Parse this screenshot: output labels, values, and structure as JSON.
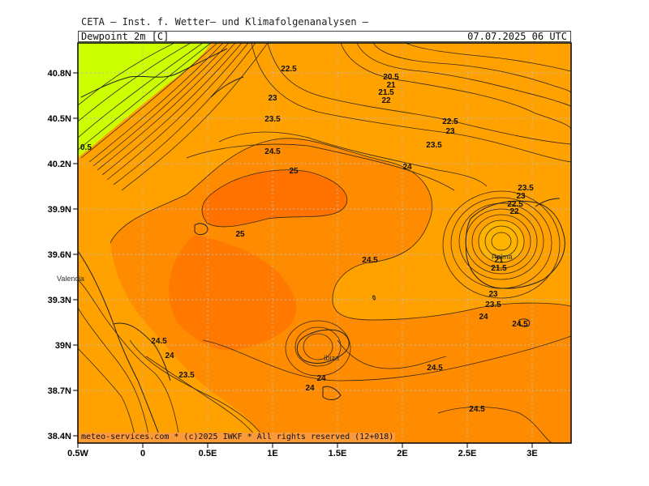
{
  "header": {
    "institute": "CETA — Inst. f. Wetter— und Klimafolgenanalysen —",
    "variable": "Dewpoint_2m [C]",
    "datetime": "07.07.2025 06 UTC"
  },
  "footer": "meteo-services.com * (c)2025 IWKF * All rights reserved (12+018)",
  "axes": {
    "lat_labels": [
      "40.8N",
      "40.5N",
      "40.2N",
      "39.9N",
      "39.6N",
      "39.3N",
      "39N",
      "38.7N",
      "38.4N"
    ],
    "lon_labels": [
      "0.5W",
      "0",
      "0.5E",
      "1E",
      "1.5E",
      "2E",
      "2.5E",
      "3E"
    ]
  },
  "places": {
    "valencia": "Valencia",
    "ibiza": "Ibiza",
    "palma": "Palma"
  },
  "contour_labels": [
    {
      "text": "22.5"
    },
    {
      "text": "20.5"
    },
    {
      "text": "21"
    },
    {
      "text": "21.5"
    },
    {
      "text": "22"
    },
    {
      "text": "23"
    },
    {
      "text": "23.5"
    },
    {
      "text": "22.5"
    },
    {
      "text": "23"
    },
    {
      "text": "23.5"
    },
    {
      "text": "24.5"
    },
    {
      "text": "25"
    },
    {
      "text": "24"
    },
    {
      "text": "25"
    },
    {
      "text": "24.5"
    },
    {
      "text": "23.5"
    },
    {
      "text": "23"
    },
    {
      "text": "22.5"
    },
    {
      "text": "22"
    },
    {
      "text": "21"
    },
    {
      "text": "21.5"
    },
    {
      "text": "23"
    },
    {
      "text": "23.5"
    },
    {
      "text": "24"
    },
    {
      "text": "24.5"
    },
    {
      "text": "24.5"
    },
    {
      "text": "24"
    },
    {
      "text": "23.5"
    },
    {
      "text": "24"
    },
    {
      "text": "24"
    },
    {
      "text": "24.5"
    },
    {
      "text": "24.5"
    },
    {
      "text": "0.5"
    }
  ],
  "colors": {
    "yellow_green": "#ccff00",
    "orange_light": "#ffa200",
    "orange": "#ff8c00",
    "orange_dark": "#ff7200",
    "grid": "#bbbbbb",
    "contour": "#3a2a10"
  }
}
